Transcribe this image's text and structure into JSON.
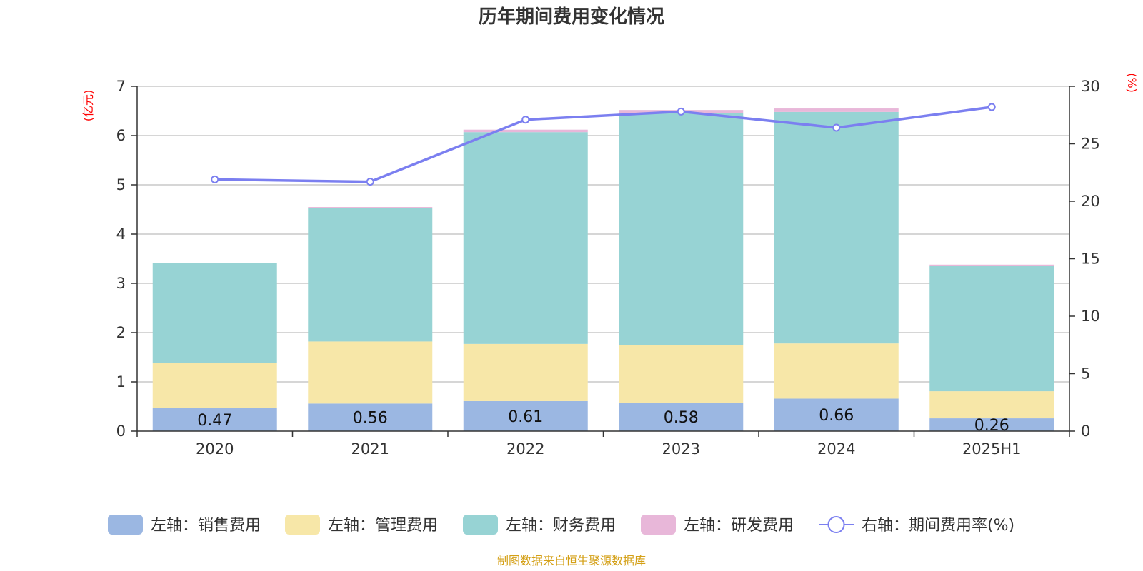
{
  "chart_data": {
    "type": "bar",
    "title": "历年期间费用变化情况",
    "categories": [
      "2020",
      "2021",
      "2022",
      "2023",
      "2024",
      "2025H1"
    ],
    "left_axis": {
      "unit": "(亿元)",
      "ylim": [
        0,
        7
      ],
      "ticks": [
        "0",
        "1",
        "2",
        "3",
        "4",
        "5",
        "6",
        "7"
      ]
    },
    "right_axis": {
      "unit": "(%)",
      "ylim": [
        0,
        30
      ],
      "ticks": [
        "0",
        "5",
        "10",
        "15",
        "20",
        "25",
        "30"
      ]
    },
    "series": [
      {
        "name": "左轴：销售费用",
        "stack": "left",
        "color": "#9bb7e2",
        "values": [
          0.47,
          0.56,
          0.61,
          0.58,
          0.66,
          0.26
        ],
        "labels": [
          "0.47",
          "0.56",
          "0.61",
          "0.58",
          "0.66",
          "0.26"
        ]
      },
      {
        "name": "左轴：管理费用",
        "stack": "left",
        "color": "#f7e7a8",
        "values": [
          0.92,
          1.26,
          1.16,
          1.17,
          1.12,
          0.55
        ]
      },
      {
        "name": "左轴：财务费用",
        "stack": "left",
        "color": "#97d3d4",
        "values": [
          2.03,
          2.71,
          4.3,
          4.7,
          4.7,
          2.54
        ]
      },
      {
        "name": "左轴：研发费用",
        "stack": "left",
        "color": "#e8b7d9",
        "values": [
          0.0,
          0.02,
          0.05,
          0.07,
          0.07,
          0.03
        ]
      },
      {
        "name": "右轴：期间费用率(%)",
        "type": "line",
        "axis": "right",
        "color": "#7b7ff0",
        "values": [
          21.9,
          21.7,
          27.1,
          27.8,
          26.4,
          28.2
        ]
      }
    ],
    "legend_position": "bottom",
    "grid": true,
    "source": "制图数据来自恒生聚源数据库"
  }
}
